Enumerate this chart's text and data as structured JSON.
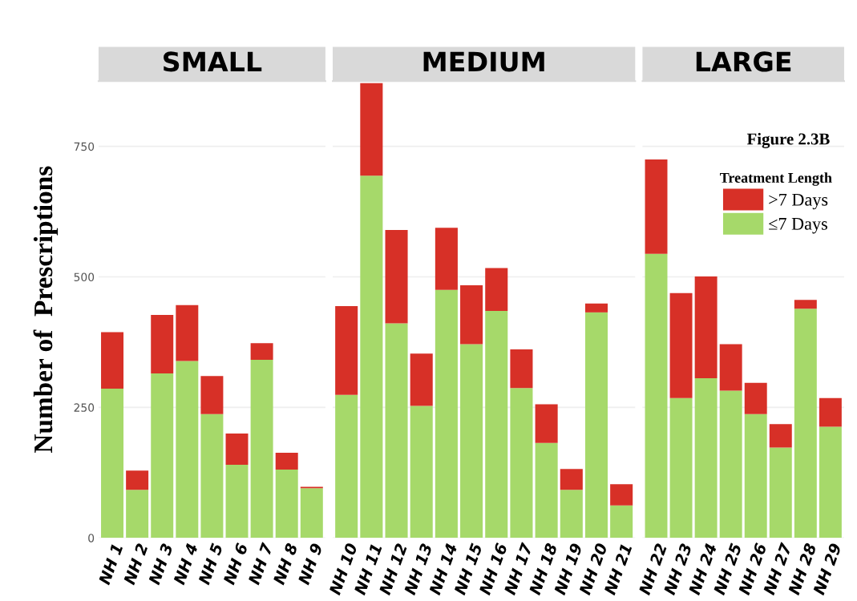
{
  "chart_data": [
    {
      "type": "bar",
      "title": "SMALL",
      "ylabel": "Number of  Prescriptions",
      "stacked": true,
      "grid": "y",
      "legend": false,
      "categories": [
        "NH 1",
        "NH 2",
        "NH 3",
        "NH 4",
        "NH 5",
        "NH 6",
        "NH 7",
        "NH 8",
        "NH 9"
      ],
      "series": [
        {
          "color": "#a6d96a",
          "values": [
            286,
            92,
            315,
            339,
            237,
            140,
            341,
            131,
            95
          ]
        },
        {
          "color": "#d73027",
          "values": [
            108,
            37,
            112,
            107,
            73,
            60,
            32,
            32,
            3
          ]
        }
      ],
      "ylim": [
        0,
        875
      ],
      "yticks": [
        0,
        250,
        500,
        750
      ]
    },
    {
      "type": "bar",
      "title": "MEDIUM",
      "stacked": true,
      "grid": "y",
      "legend": false,
      "tick_labels": "x",
      "categories": [
        "NH 10",
        "NH 11",
        "NH 12",
        "NH 13",
        "NH 14",
        "NH 15",
        "NH 16",
        "NH 17",
        "NH 18",
        "NH 19",
        "NH 20",
        "NH 21"
      ],
      "series": [
        {
          "color": "#a6d96a",
          "values": [
            274,
            694,
            411,
            253,
            475,
            371,
            435,
            287,
            182,
            92,
            432,
            62
          ]
        },
        {
          "color": "#d73027",
          "values": [
            170,
            177,
            179,
            100,
            119,
            113,
            82,
            74,
            74,
            40,
            17,
            41
          ]
        }
      ],
      "ylim": [
        0,
        875
      ],
      "yticks": [
        0,
        250,
        500,
        750
      ]
    },
    {
      "type": "bar",
      "title": "LARGE",
      "stacked": true,
      "grid": "y",
      "legend": "top right",
      "tick_labels": "x",
      "legend_title": "Treatment Length",
      "annotations": [
        "Figure 2.3B"
      ],
      "categories": [
        "NH 22",
        "NH 23",
        "NH 24",
        "NH 25",
        "NH 26",
        "NH 27",
        "NH 28",
        "NH 29"
      ],
      "series": [
        {
          "name": "≤7 Days",
          "color": "#a6d96a",
          "values": [
            544,
            268,
            306,
            282,
            237,
            173,
            439,
            213
          ]
        },
        {
          "name": ">7 Days",
          "color": "#d73027",
          "values": [
            181,
            201,
            195,
            89,
            60,
            45,
            17,
            55
          ]
        }
      ],
      "ylim": [
        0,
        875
      ],
      "yticks": [
        0,
        250,
        500,
        750
      ]
    }
  ]
}
